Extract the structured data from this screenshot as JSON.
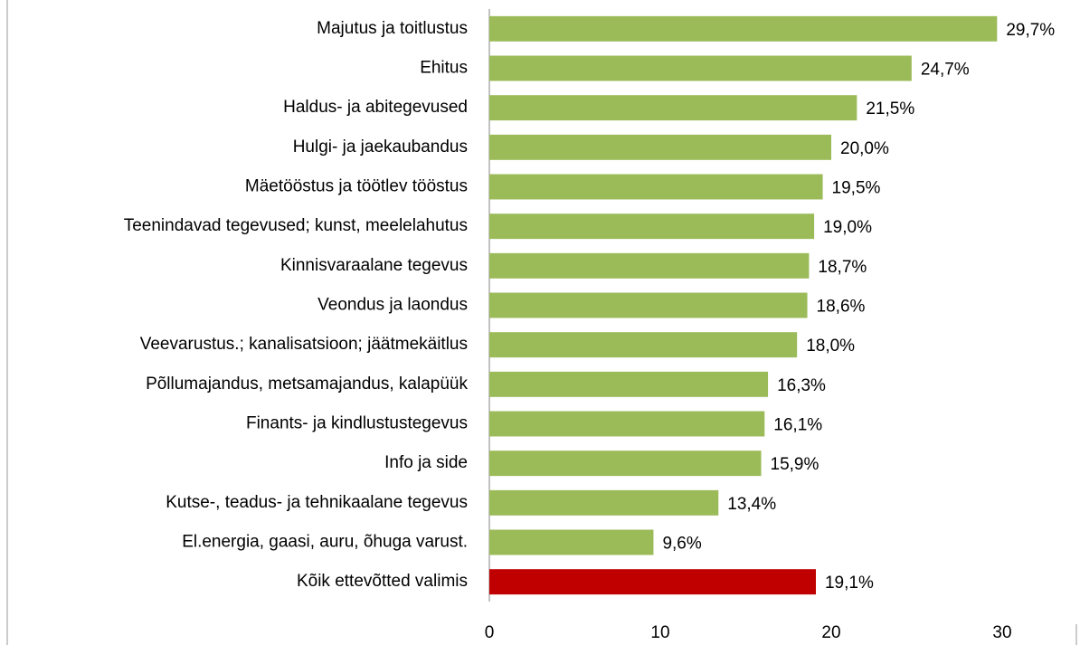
{
  "chart_data": {
    "type": "bar",
    "orientation": "horizontal",
    "categories": [
      "Majutus ja toitlustus",
      "Ehitus",
      "Haldus- ja abitegevused",
      "Hulgi- ja jaekaubandus",
      "Mäetööstus ja töötlev tööstus",
      "Teenindavad tegevused; kunst, meelelahutus",
      "Kinnisvaraalane tegevus",
      "Veondus ja laondus",
      "Veevarustus.; kanalisatsioon; jäätmekäitlus",
      "Põllumajandus, metsamajandus, kalapüük",
      "Finants- ja kindlustustegevus",
      "Info ja side",
      "Kutse-, teadus- ja tehnikaalane tegevus",
      "El.energia, gaasi, auru, õhuga varust.",
      "Kõik ettevõtted valimis"
    ],
    "values": [
      29.7,
      24.7,
      21.5,
      20.0,
      19.5,
      19.0,
      18.7,
      18.6,
      18.0,
      16.3,
      16.1,
      15.9,
      13.4,
      9.6,
      19.1
    ],
    "value_labels": [
      "29,7%",
      "24,7%",
      "21,5%",
      "20,0%",
      "19,5%",
      "19,0%",
      "18,7%",
      "18,6%",
      "18,0%",
      "16,3%",
      "16,1%",
      "15,9%",
      "13,4%",
      "9,6%",
      "19,1%"
    ],
    "colors": [
      "#9bbb59",
      "#9bbb59",
      "#9bbb59",
      "#9bbb59",
      "#9bbb59",
      "#9bbb59",
      "#9bbb59",
      "#9bbb59",
      "#9bbb59",
      "#9bbb59",
      "#9bbb59",
      "#9bbb59",
      "#9bbb59",
      "#9bbb59",
      "#c00000"
    ],
    "xlim": [
      0,
      30
    ],
    "xticks": [
      0,
      10,
      20,
      30
    ],
    "grid": false
  }
}
